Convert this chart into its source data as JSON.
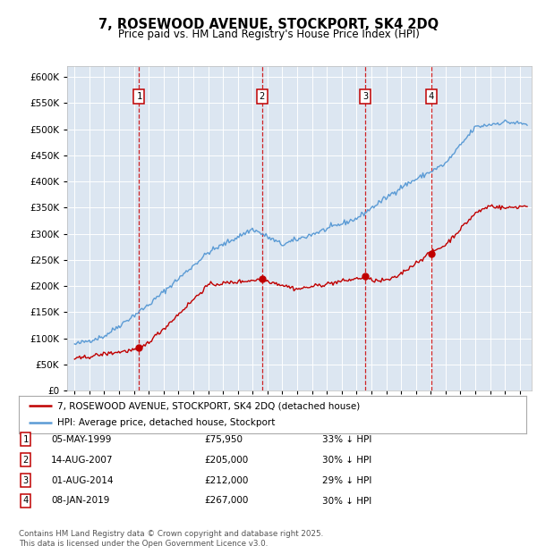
{
  "title": "7, ROSEWOOD AVENUE, STOCKPORT, SK4 2DQ",
  "subtitle": "Price paid vs. HM Land Registry's House Price Index (HPI)",
  "background_color": "#ffffff",
  "plot_bg_color": "#dce6f1",
  "grid_color": "#ffffff",
  "legend_line1": "7, ROSEWOOD AVENUE, STOCKPORT, SK4 2DQ (detached house)",
  "legend_line2": "HPI: Average price, detached house, Stockport",
  "transactions": [
    {
      "num": 1,
      "date_x": 1999.35,
      "price": 75950,
      "label": "05-MAY-1999",
      "pct": "33%",
      "dir": "↓"
    },
    {
      "num": 2,
      "date_x": 2007.62,
      "price": 205000,
      "label": "14-AUG-2007",
      "pct": "30%",
      "dir": "↓"
    },
    {
      "num": 3,
      "date_x": 2014.58,
      "price": 212000,
      "label": "01-AUG-2014",
      "pct": "29%",
      "dir": "↓"
    },
    {
      "num": 4,
      "date_x": 2019.02,
      "price": 267000,
      "label": "08-JAN-2019",
      "pct": "30%",
      "dir": "↓"
    }
  ],
  "hpi_color": "#5b9bd5",
  "price_color": "#c00000",
  "vline_color": "#cc0000",
  "marker_box_color": "#c00000",
  "footnote": "Contains HM Land Registry data © Crown copyright and database right 2025.\nThis data is licensed under the Open Government Licence v3.0.",
  "ylim_max": 620000,
  "ylim_min": 0,
  "yticks": [
    0,
    50000,
    100000,
    150000,
    200000,
    250000,
    300000,
    350000,
    400000,
    450000,
    500000,
    550000,
    600000
  ],
  "xlim_min": 1994.5,
  "xlim_max": 2025.8,
  "fig_width": 6.0,
  "fig_height": 6.2,
  "fig_dpi": 100
}
